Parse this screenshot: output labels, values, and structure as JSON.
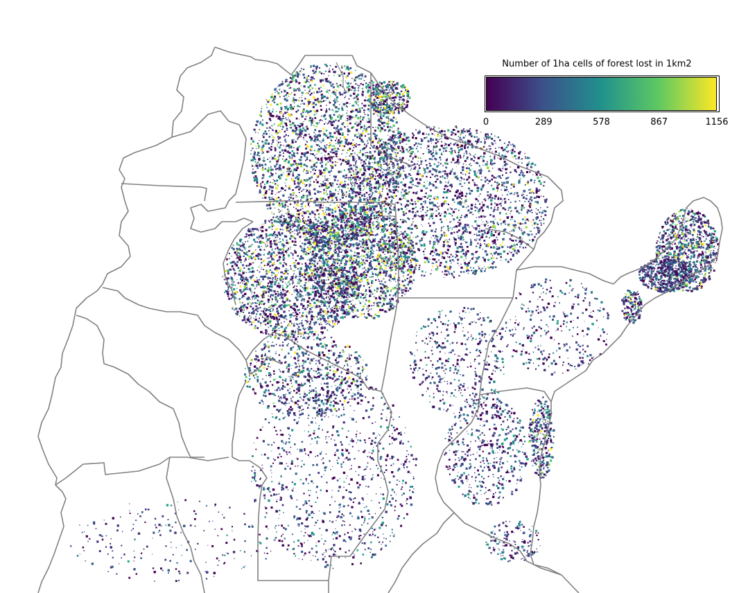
{
  "colorbar": {
    "title": "Number of 1ha cells of forest lost in 1km2",
    "min": 0,
    "max": 1156,
    "ticks": [
      "0",
      "289",
      "578",
      "867",
      "1156"
    ],
    "colormap": [
      "#440154",
      "#3b528b",
      "#21918c",
      "#5ec962",
      "#fde725"
    ]
  },
  "map": {
    "background": "#ffffff",
    "boundary_color": "#808080"
  }
}
